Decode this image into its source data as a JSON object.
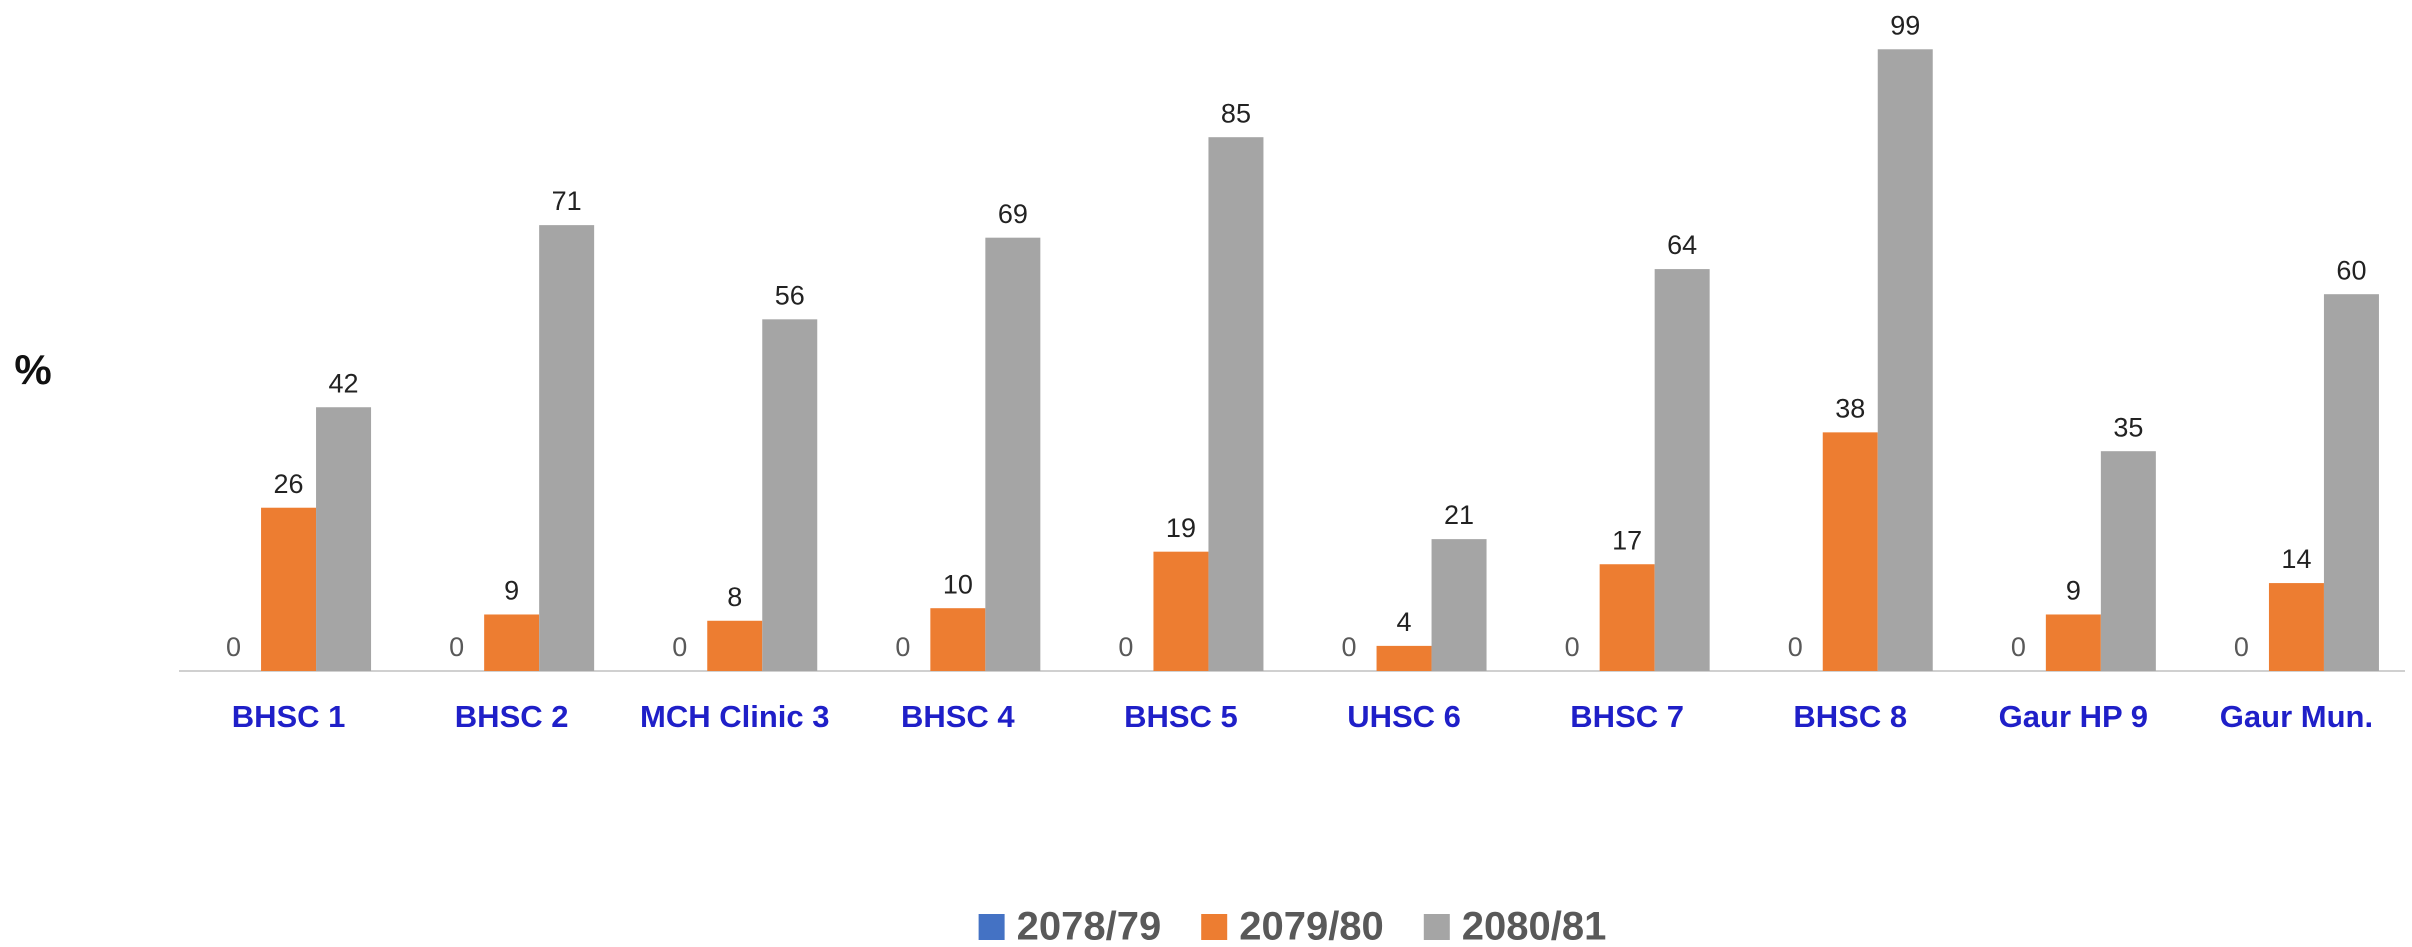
{
  "chart_data": {
    "type": "bar",
    "y_label": "%",
    "categories": [
      "BHSC 1",
      "BHSC 2",
      "MCH Clinic 3",
      "BHSC 4",
      "BHSC 5",
      "UHSC 6",
      "BHSC 7",
      "BHSC 8",
      "Gaur HP 9",
      "Gaur Mun."
    ],
    "series": [
      {
        "name": "2078/79",
        "color": "#4472c4",
        "values": [
          0,
          0,
          0,
          0,
          0,
          0,
          0,
          0,
          0,
          0
        ]
      },
      {
        "name": "2079/80",
        "color": "#ed7d31",
        "values": [
          26,
          9,
          8,
          10,
          19,
          4,
          17,
          38,
          9,
          14
        ]
      },
      {
        "name": "2080/81",
        "color": "#a5a5a5",
        "values": [
          42,
          71,
          56,
          69,
          85,
          21,
          64,
          99,
          35,
          60
        ]
      }
    ],
    "ylim": [
      0,
      100
    ],
    "legend": "bottom"
  }
}
